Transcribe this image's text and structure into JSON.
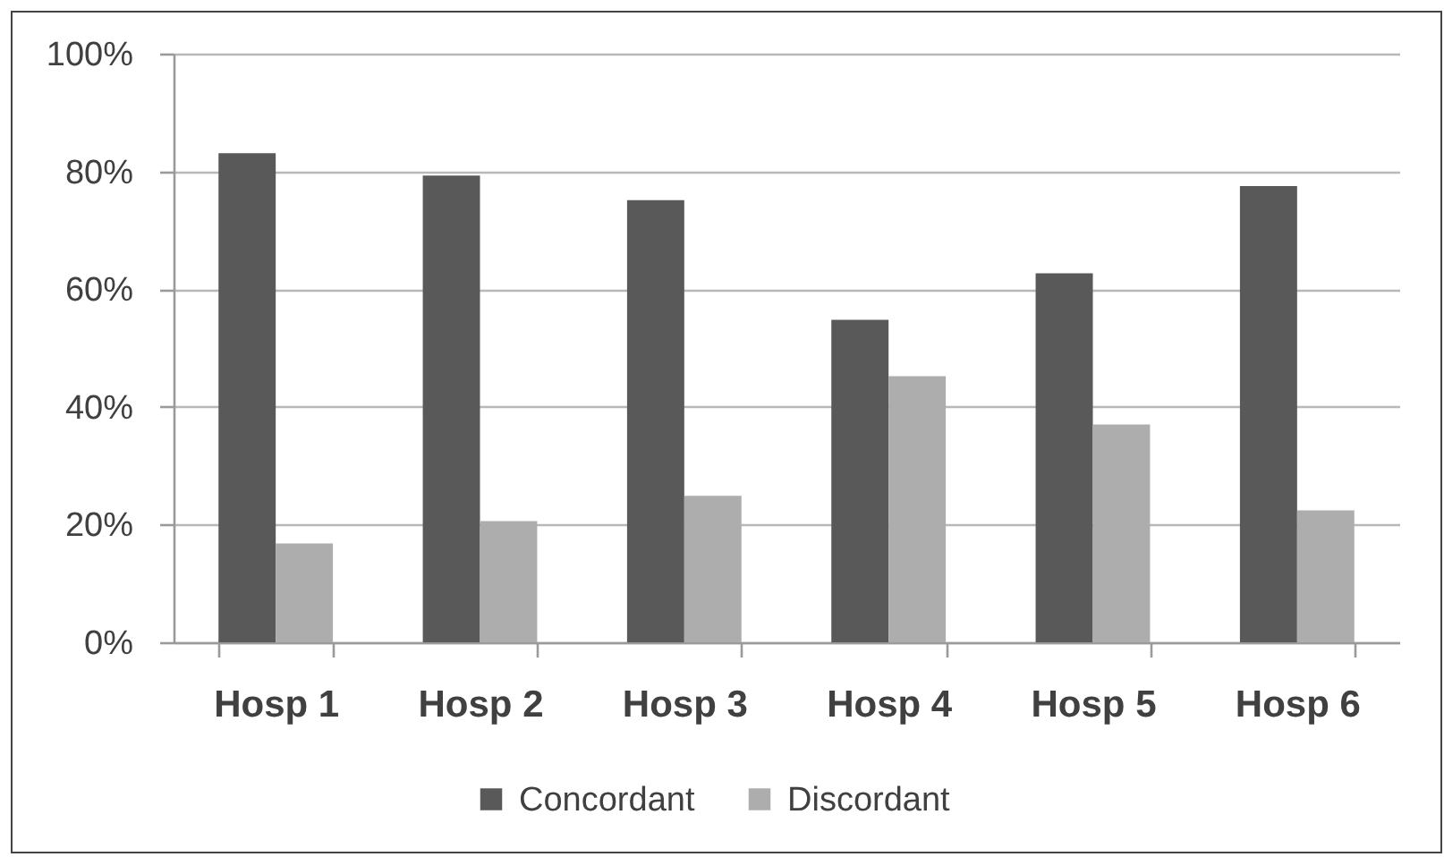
{
  "chart_data": {
    "type": "bar",
    "categories": [
      "Hosp 1",
      "Hosp 2",
      "Hosp 3",
      "Hosp 4",
      "Hosp 5",
      "Hosp 6"
    ],
    "series": [
      {
        "name": "Concordant",
        "color": "#595959",
        "values": [
          83.1,
          79.3,
          75.1,
          54.8,
          62.7,
          77.5
        ]
      },
      {
        "name": "Discordant",
        "color": "#adadad",
        "values": [
          16.8,
          20.6,
          24.9,
          45.2,
          37.0,
          22.4
        ]
      }
    ],
    "ylim": [
      0,
      100
    ],
    "yticks": [
      {
        "value": 0,
        "label": "0%"
      },
      {
        "value": 20,
        "label": "20%"
      },
      {
        "value": 40,
        "label": "40%"
      },
      {
        "value": 60,
        "label": "60%"
      },
      {
        "value": 80,
        "label": "80%"
      },
      {
        "value": 100,
        "label": "100%"
      }
    ],
    "grid": "y",
    "legend": "bottom"
  }
}
